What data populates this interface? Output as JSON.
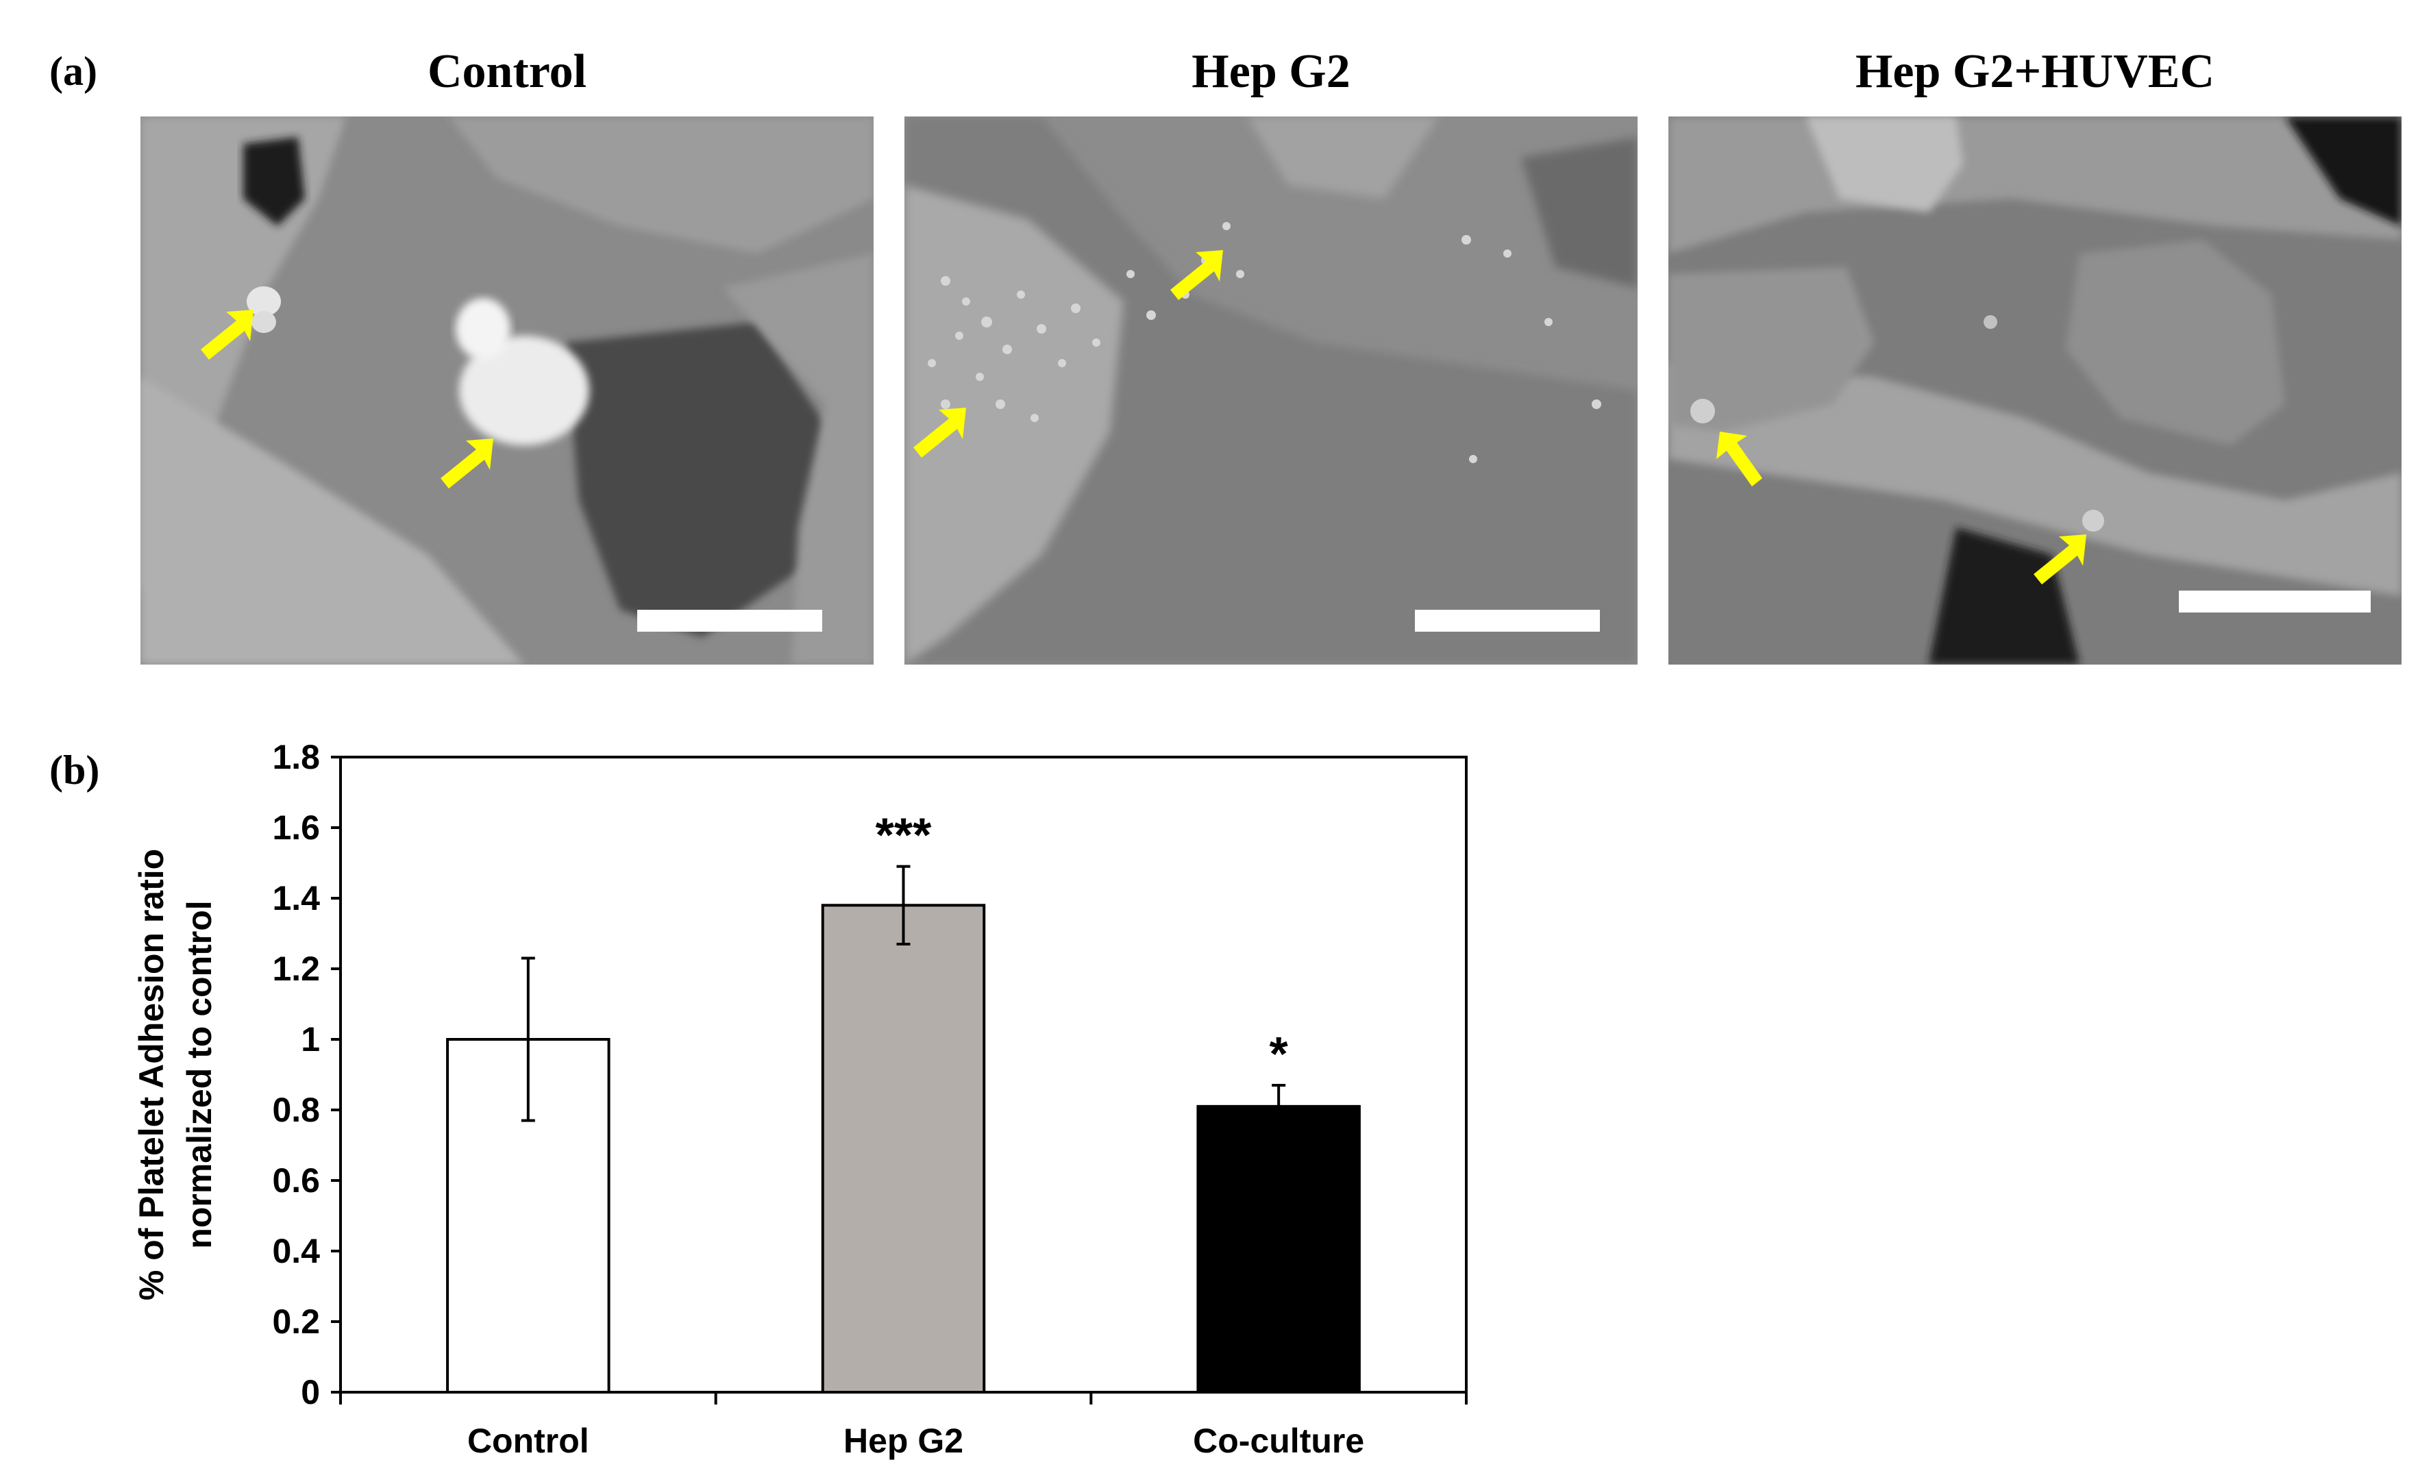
{
  "panel_a": {
    "label": "(a)",
    "images": [
      {
        "title": "Control"
      },
      {
        "title": "Hep G2"
      },
      {
        "title": "Hep G2+HUVEC"
      }
    ],
    "arrow_color": "#ffff00",
    "scale_bar_color": "#ffffff"
  },
  "panel_b": {
    "label": "(b)"
  },
  "chart_data": {
    "type": "bar",
    "categories": [
      "Control",
      "Hep G2",
      "Co-culture"
    ],
    "values": [
      1.0,
      1.38,
      0.81
    ],
    "errors": [
      0.23,
      0.11,
      0.06
    ],
    "significance": [
      "",
      "***",
      "*"
    ],
    "bar_colors": [
      "#ffffff",
      "#b4aeaa",
      "#000000"
    ],
    "title": "",
    "xlabel": "",
    "ylabel_lines": [
      "% of Platelet Adhesion ratio",
      "normalized to control"
    ],
    "ylim": [
      0,
      1.8
    ],
    "yticks": [
      0,
      0.2,
      0.4,
      0.6,
      0.8,
      1,
      1.2,
      1.4,
      1.6,
      1.8
    ],
    "ytick_labels": [
      "0",
      "0.2",
      "0.4",
      "0.6",
      "0.8",
      "1",
      "1.2",
      "1.4",
      "1.6",
      "1.8"
    ],
    "grid": false,
    "legend": "none"
  }
}
